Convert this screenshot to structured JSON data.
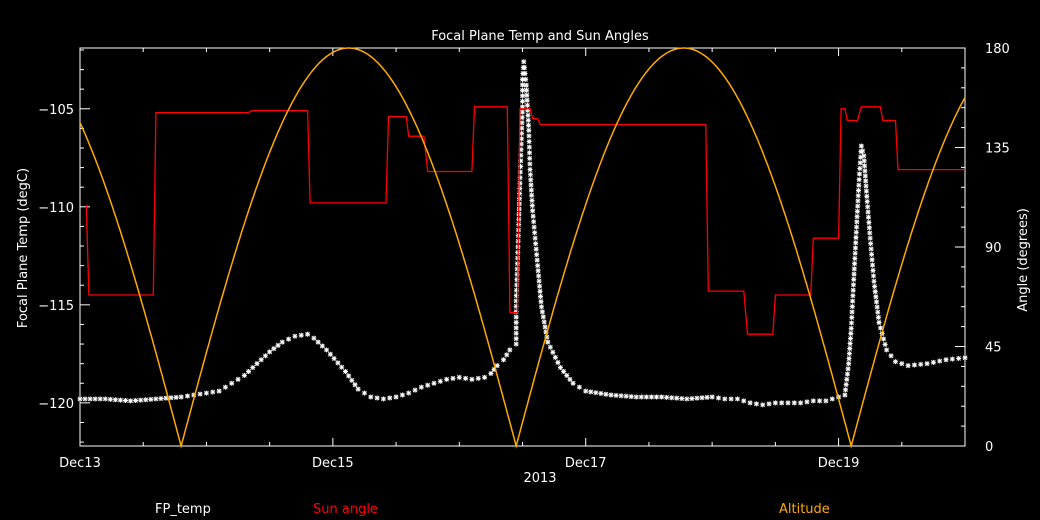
{
  "chart_data": {
    "type": "line",
    "title": "Focal Plane Temp and Sun Angles",
    "xlabel": "2013",
    "ylabel": "Focal Plane Temp (degC)",
    "ylabel_right": "Angle (degrees)",
    "x_ticks": [
      "Dec13",
      "Dec15",
      "Dec17",
      "Dec19"
    ],
    "x_tick_values": [
      13,
      15,
      17,
      19
    ],
    "xlim": [
      13.0,
      20.0
    ],
    "ylim": [
      -122.2,
      -101.9
    ],
    "y_ticks": [
      -120,
      -115,
      -110,
      -105
    ],
    "y2lim": [
      0,
      180
    ],
    "y2_ticks": [
      0,
      45,
      90,
      135,
      180
    ],
    "grid": false,
    "legend": [
      "FP_temp",
      "Sun angle",
      "Altitude"
    ],
    "series": [
      {
        "name": "FP_temp",
        "axis": "left",
        "color": "#ffffff",
        "style": "scatter",
        "points": [
          [
            13.0,
            -119.8
          ],
          [
            13.2,
            -119.8
          ],
          [
            13.4,
            -119.9
          ],
          [
            13.6,
            -119.8
          ],
          [
            13.8,
            -119.7
          ],
          [
            13.9,
            -119.6
          ],
          [
            14.0,
            -119.5
          ],
          [
            14.1,
            -119.4
          ],
          [
            14.2,
            -119.0
          ],
          [
            14.3,
            -118.6
          ],
          [
            14.4,
            -118.0
          ],
          [
            14.5,
            -117.4
          ],
          [
            14.6,
            -116.9
          ],
          [
            14.7,
            -116.6
          ],
          [
            14.8,
            -116.5
          ],
          [
            14.85,
            -116.7
          ],
          [
            14.95,
            -117.3
          ],
          [
            15.1,
            -118.4
          ],
          [
            15.2,
            -119.3
          ],
          [
            15.3,
            -119.7
          ],
          [
            15.4,
            -119.8
          ],
          [
            15.5,
            -119.7
          ],
          [
            15.6,
            -119.5
          ],
          [
            15.7,
            -119.2
          ],
          [
            15.8,
            -119.0
          ],
          [
            15.9,
            -118.8
          ],
          [
            16.0,
            -118.7
          ],
          [
            16.1,
            -118.8
          ],
          [
            16.2,
            -118.7
          ],
          [
            16.25,
            -118.5
          ],
          [
            16.3,
            -118.1
          ],
          [
            16.35,
            -117.8
          ],
          [
            16.4,
            -117.3
          ],
          [
            16.45,
            -117.0
          ],
          [
            16.45,
            -114.8
          ],
          [
            16.46,
            -112.9
          ],
          [
            16.47,
            -110.9
          ],
          [
            16.48,
            -108.8
          ],
          [
            16.49,
            -106.8
          ],
          [
            16.5,
            -104.9
          ],
          [
            16.5,
            -103.5
          ],
          [
            16.51,
            -102.6
          ],
          [
            16.53,
            -103.8
          ],
          [
            16.55,
            -106.1
          ],
          [
            16.56,
            -108.1
          ],
          [
            16.58,
            -110.2
          ],
          [
            16.6,
            -111.6
          ],
          [
            16.62,
            -113.0
          ],
          [
            16.65,
            -115.1
          ],
          [
            16.7,
            -116.9
          ],
          [
            16.8,
            -118.2
          ],
          [
            16.9,
            -119.0
          ],
          [
            17.0,
            -119.4
          ],
          [
            17.2,
            -119.6
          ],
          [
            17.4,
            -119.7
          ],
          [
            17.6,
            -119.7
          ],
          [
            17.8,
            -119.8
          ],
          [
            18.0,
            -119.7
          ],
          [
            18.1,
            -119.8
          ],
          [
            18.2,
            -119.8
          ],
          [
            18.3,
            -120.0
          ],
          [
            18.4,
            -120.1
          ],
          [
            18.5,
            -120.0
          ],
          [
            18.6,
            -120.0
          ],
          [
            18.7,
            -120.0
          ],
          [
            18.8,
            -119.9
          ],
          [
            18.9,
            -119.9
          ],
          [
            19.0,
            -119.7
          ],
          [
            19.05,
            -119.6
          ],
          [
            19.08,
            -118.0
          ],
          [
            19.1,
            -116.2
          ],
          [
            19.12,
            -113.7
          ],
          [
            19.14,
            -111.3
          ],
          [
            19.16,
            -108.9
          ],
          [
            19.18,
            -106.9
          ],
          [
            19.2,
            -107.4
          ],
          [
            19.22,
            -109.2
          ],
          [
            19.25,
            -111.6
          ],
          [
            19.28,
            -113.8
          ],
          [
            19.32,
            -115.9
          ],
          [
            19.38,
            -117.3
          ],
          [
            19.45,
            -117.9
          ],
          [
            19.55,
            -118.1
          ],
          [
            19.7,
            -118.0
          ],
          [
            19.85,
            -117.8
          ],
          [
            20.0,
            -117.7
          ]
        ]
      },
      {
        "name": "Sun angle",
        "axis": "left",
        "color": "#ff0000",
        "style": "step",
        "points": [
          [
            13.05,
            -109.9
          ],
          [
            13.07,
            -114.5
          ],
          [
            13.58,
            -114.5
          ],
          [
            13.6,
            -105.2
          ],
          [
            14.33,
            -105.2
          ],
          [
            14.36,
            -105.1
          ],
          [
            14.8,
            -105.1
          ],
          [
            14.82,
            -109.8
          ],
          [
            15.42,
            -109.8
          ],
          [
            15.44,
            -105.4
          ],
          [
            15.58,
            -105.4
          ],
          [
            15.6,
            -106.4
          ],
          [
            15.72,
            -106.4
          ],
          [
            15.75,
            -108.2
          ],
          [
            16.1,
            -108.2
          ],
          [
            16.12,
            -104.9
          ],
          [
            16.38,
            -104.9
          ],
          [
            16.4,
            -115.4
          ],
          [
            16.46,
            -115.4
          ],
          [
            16.48,
            -105.0
          ],
          [
            16.56,
            -105.0
          ],
          [
            16.58,
            -105.5
          ],
          [
            16.62,
            -105.5
          ],
          [
            16.64,
            -105.8
          ],
          [
            17.95,
            -105.8
          ],
          [
            17.97,
            -114.3
          ],
          [
            18.25,
            -114.3
          ],
          [
            18.28,
            -116.5
          ],
          [
            18.48,
            -116.5
          ],
          [
            18.5,
            -114.5
          ],
          [
            18.78,
            -114.5
          ],
          [
            18.8,
            -111.6
          ],
          [
            19.0,
            -111.6
          ],
          [
            19.02,
            -105.0
          ],
          [
            19.05,
            -105.0
          ],
          [
            19.07,
            -105.6
          ],
          [
            19.15,
            -105.6
          ],
          [
            19.18,
            -104.9
          ],
          [
            19.33,
            -104.9
          ],
          [
            19.35,
            -105.6
          ],
          [
            19.45,
            -105.6
          ],
          [
            19.47,
            -108.1
          ],
          [
            20.0,
            -108.1
          ]
        ]
      },
      {
        "name": "Altitude",
        "axis": "right",
        "color": "#ffaa00",
        "style": "bounce",
        "peaks": [
          15.1,
          17.75
        ],
        "minima": [
          13.8,
          16.45,
          19.1
        ],
        "min_value": 0,
        "max_value": 180,
        "range": [
          13.0,
          20.0
        ]
      }
    ]
  }
}
